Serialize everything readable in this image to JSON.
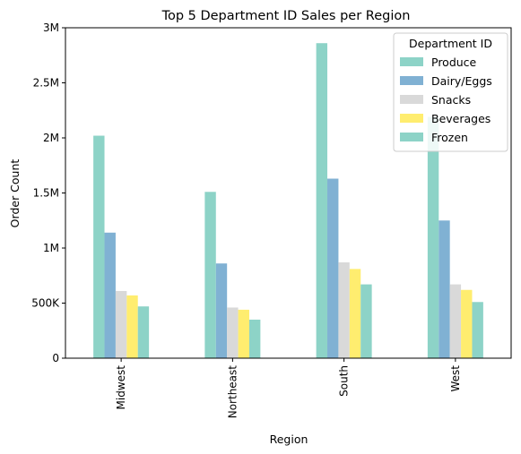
{
  "chart_data": {
    "type": "bar",
    "title": "Top 5 Department ID Sales per Region",
    "xlabel": "Region",
    "ylabel": "Order Count",
    "categories": [
      "Midwest",
      "Northeast",
      "South",
      "West"
    ],
    "ylim": [
      0,
      3000000
    ],
    "yticks": [
      0,
      500000,
      1000000,
      1500000,
      2000000,
      2500000,
      3000000
    ],
    "ytick_labels": [
      "0",
      "500K",
      "1M",
      "1.5M",
      "2M",
      "2.5M",
      "3M"
    ],
    "legend": {
      "title": "Department ID",
      "position": "top-right"
    },
    "grid": false,
    "series": [
      {
        "name": "Produce",
        "color": "#8dd3c7",
        "values": [
          2020000,
          1510000,
          2860000,
          2190000
        ]
      },
      {
        "name": "Dairy/Eggs",
        "color": "#80b1d3",
        "values": [
          1140000,
          860000,
          1630000,
          1250000
        ]
      },
      {
        "name": "Snacks",
        "color": "#d9d9d9",
        "values": [
          610000,
          460000,
          870000,
          670000
        ]
      },
      {
        "name": "Beverages",
        "color": "#ffed6f",
        "values": [
          570000,
          440000,
          810000,
          620000
        ]
      },
      {
        "name": "Frozen",
        "color": "#8dd3c7",
        "values": [
          470000,
          350000,
          670000,
          510000
        ]
      }
    ]
  }
}
